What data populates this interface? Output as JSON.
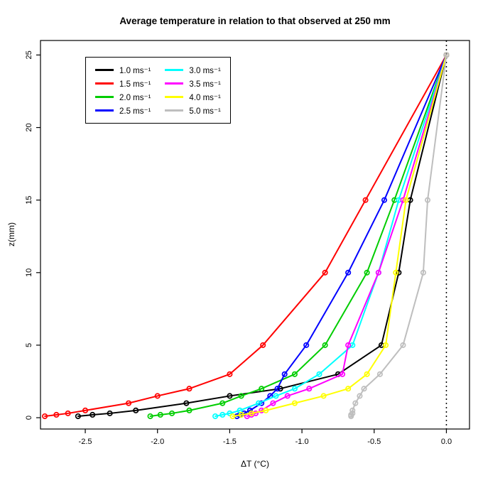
{
  "chart_data": {
    "type": "line",
    "title": "Average temperature in relation to that observed at 250 mm",
    "xlabel": "ΔT (°C)",
    "ylabel": "z(mm)",
    "xlim": [
      -2.81,
      0.16
    ],
    "ylim": [
      -0.78,
      26.0
    ],
    "x_ticks": [
      -2.5,
      -2.0,
      -1.5,
      -1.0,
      -0.5,
      0.0
    ],
    "x_tick_labels": [
      "-2.5",
      "-2.0",
      "-1.5",
      "-1.0",
      "-0.5",
      "0.0"
    ],
    "y_ticks": [
      0,
      5,
      10,
      15,
      20,
      25
    ],
    "y_tick_labels": [
      "0",
      "5",
      "10",
      "15",
      "20",
      "25"
    ],
    "grid": false,
    "legend_position": "top-left",
    "marker": "open-circle",
    "reference_line_x": 0.0,
    "reference_line_style": "dotted",
    "z": [
      0.1,
      0.2,
      0.3,
      0.5,
      1,
      1.5,
      2,
      3,
      5,
      10,
      15,
      25
    ],
    "series": [
      {
        "name": "1.0 ms⁻¹",
        "color": "#000000",
        "dT": [
          -2.55,
          -2.45,
          -2.33,
          -2.15,
          -1.8,
          -1.5,
          -1.15,
          -0.75,
          -0.45,
          -0.33,
          -0.25,
          0.0
        ]
      },
      {
        "name": "1.5 ms⁻¹",
        "color": "#ff0000",
        "dT": [
          -2.78,
          -2.7,
          -2.62,
          -2.5,
          -2.2,
          -2.0,
          -1.78,
          -1.5,
          -1.27,
          -0.84,
          -0.56,
          0.0
        ]
      },
      {
        "name": "2.0 ms⁻¹",
        "color": "#00cd00",
        "dT": [
          -2.05,
          -1.98,
          -1.9,
          -1.78,
          -1.55,
          -1.42,
          -1.28,
          -1.05,
          -0.84,
          -0.55,
          -0.36,
          0.0
        ]
      },
      {
        "name": "2.5 ms⁻¹",
        "color": "#0000ff",
        "dT": [
          -1.45,
          -1.43,
          -1.4,
          -1.36,
          -1.28,
          -1.22,
          -1.17,
          -1.12,
          -0.97,
          -0.68,
          -0.43,
          0.0
        ]
      },
      {
        "name": "3.0 ms⁻¹",
        "color": "#00ffff",
        "dT": [
          -1.6,
          -1.55,
          -1.5,
          -1.43,
          -1.3,
          -1.18,
          -1.05,
          -0.88,
          -0.65,
          -0.47,
          -0.33,
          0.0
        ]
      },
      {
        "name": "3.5 ms⁻¹",
        "color": "#ff00ff",
        "dT": [
          -1.38,
          -1.35,
          -1.32,
          -1.28,
          -1.2,
          -1.1,
          -0.95,
          -0.72,
          -0.68,
          -0.47,
          -0.3,
          0.0
        ]
      },
      {
        "name": "4.0 ms⁻¹",
        "color": "#ffff00",
        "dT": [
          -1.48,
          -1.42,
          -1.35,
          -1.25,
          -1.05,
          -0.85,
          -0.68,
          -0.55,
          -0.42,
          -0.35,
          -0.28,
          0.0
        ]
      },
      {
        "name": "5.0 ms⁻¹",
        "color": "#bebebe",
        "dT": [
          -0.66,
          -0.66,
          -0.65,
          -0.65,
          -0.63,
          -0.6,
          -0.57,
          -0.46,
          -0.3,
          -0.16,
          -0.13,
          0.0
        ]
      }
    ]
  }
}
